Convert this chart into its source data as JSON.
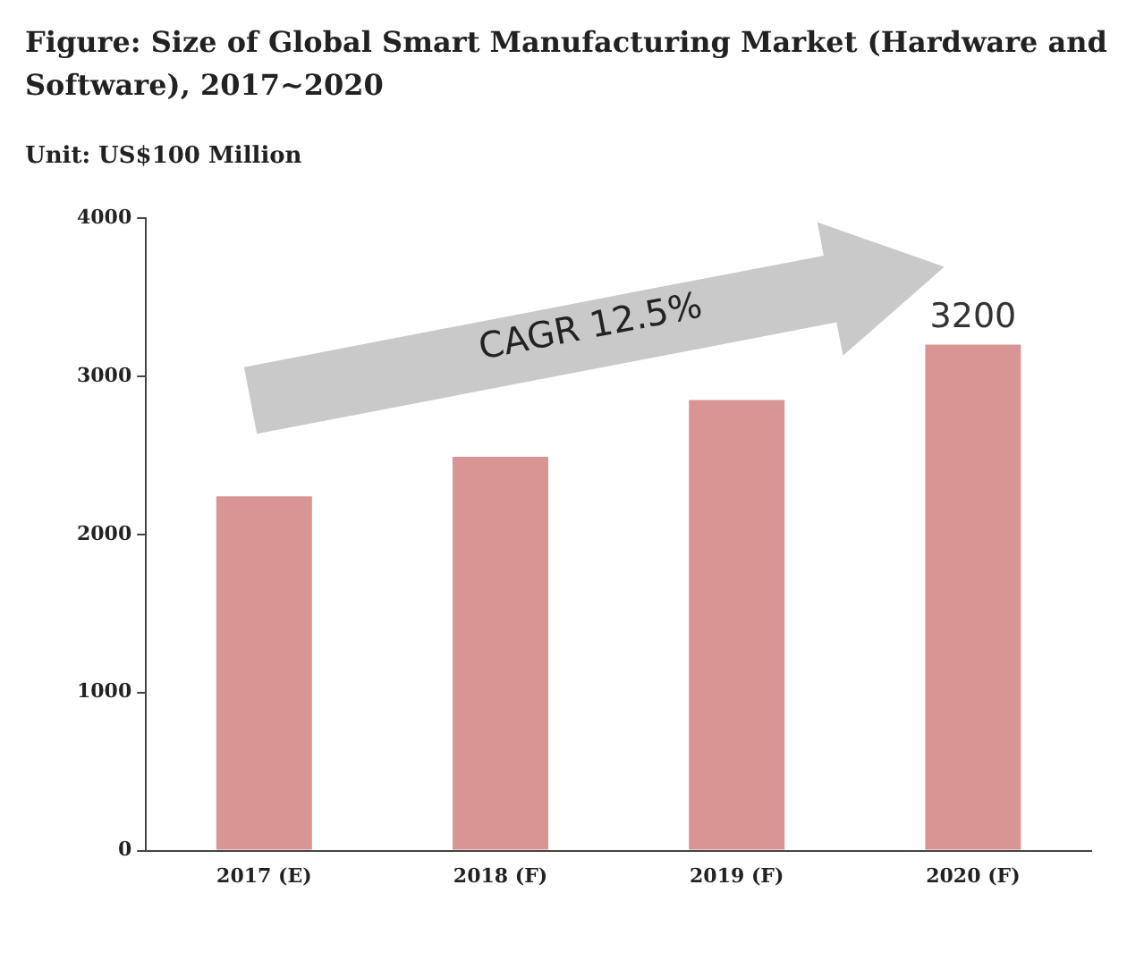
{
  "chart_data": {
    "type": "bar",
    "title": "Figure: Size of Global Smart Manufacturing Market (Hardware and Software), 2017~2020",
    "subtitle": "Unit: US$100 Million",
    "categories": [
      "2017 (E)",
      "2018 (F)",
      "2019 (F)",
      "2020 (F)"
    ],
    "values": [
      2240,
      2490,
      2850,
      3200
    ],
    "color": "#d99594",
    "value_labels": [
      null,
      null,
      null,
      "3200"
    ],
    "ylim": [
      0,
      4000
    ],
    "yticks": [
      0,
      1000,
      2000,
      3000,
      4000
    ],
    "grid": false,
    "annotations": [
      "CAGR 12.5%"
    ]
  }
}
